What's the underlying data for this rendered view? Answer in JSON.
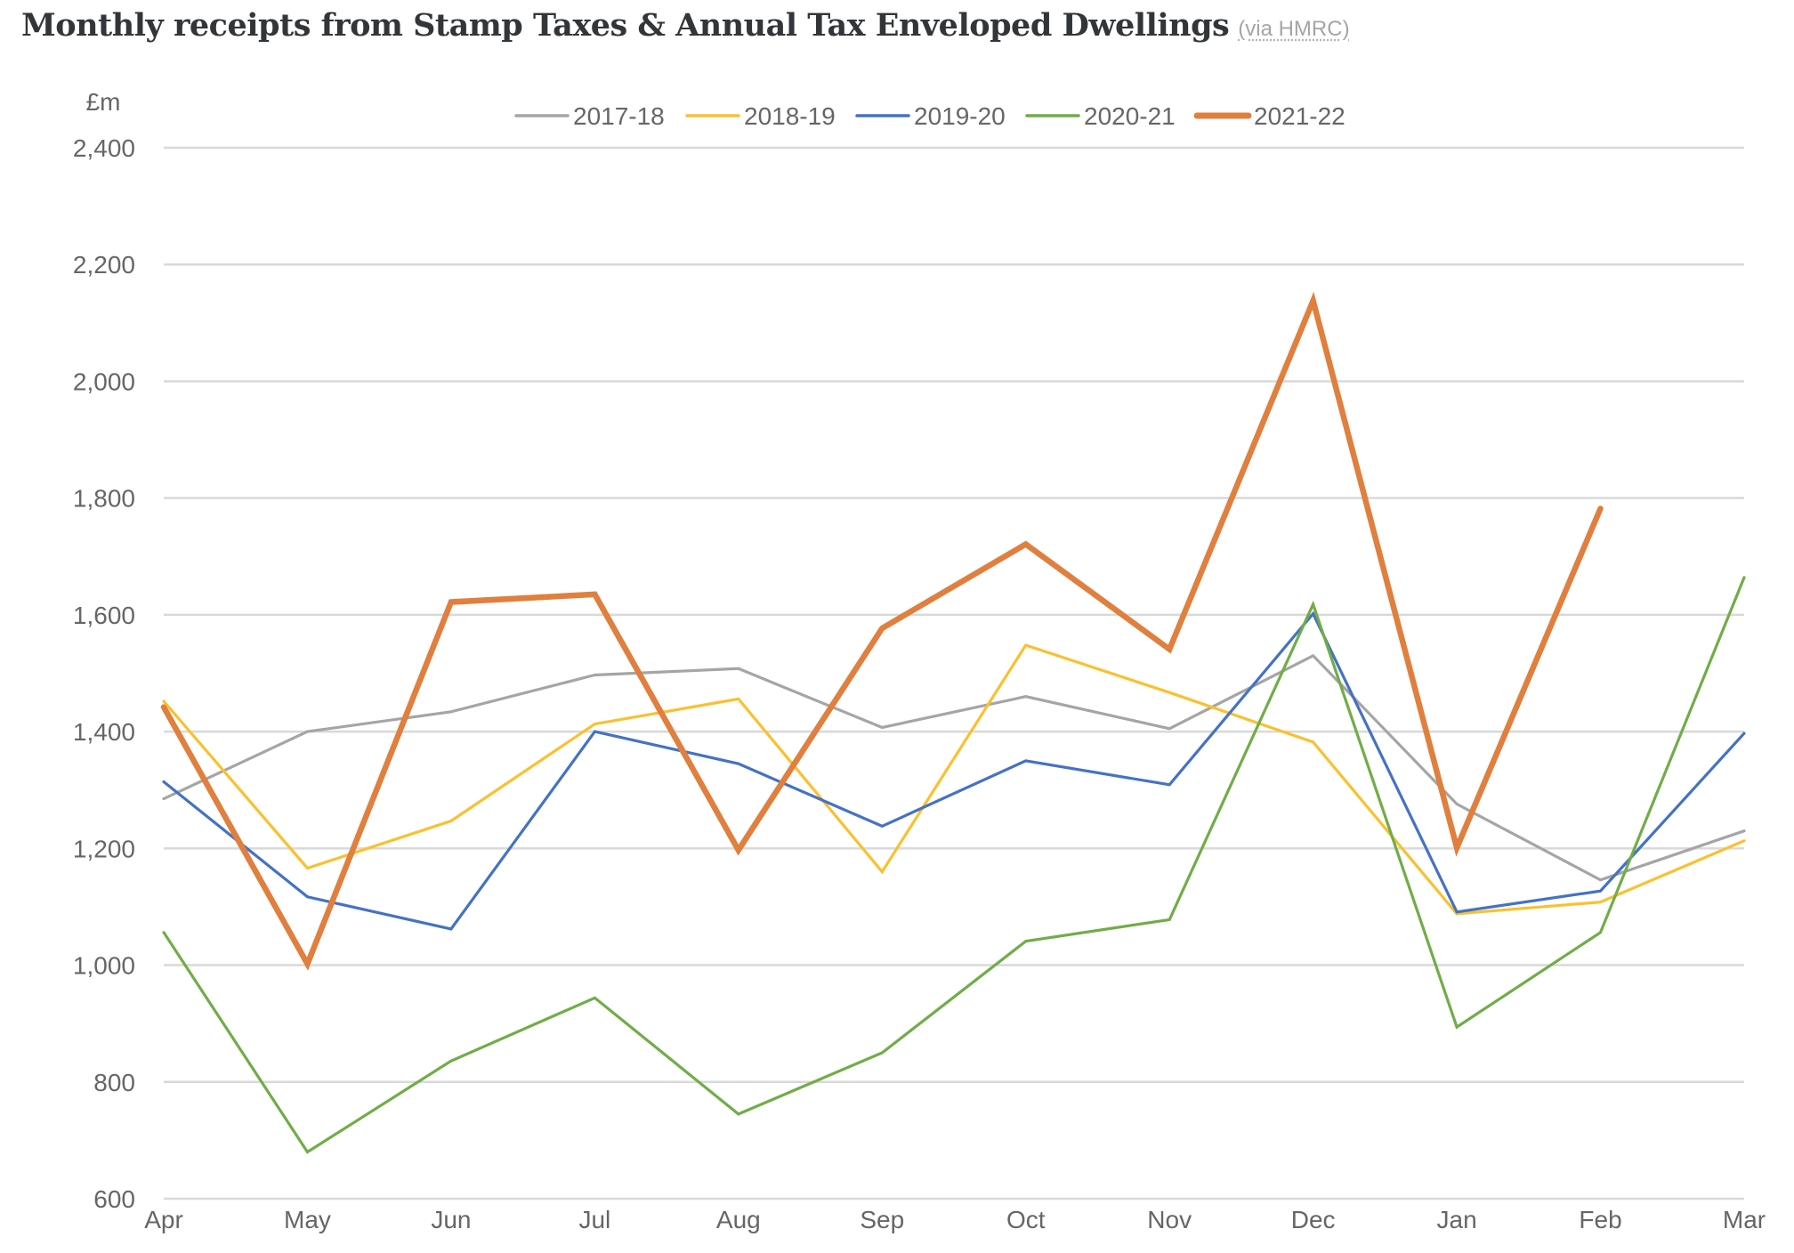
{
  "title": "Monthly receipts from Stamp Taxes & Annual Tax Enveloped Dwellings",
  "source_label": "(via HMRC)",
  "chart_data": {
    "type": "line",
    "title": "Monthly receipts from Stamp Taxes & Annual Tax Enveloped Dwellings",
    "subtitle": "(via HMRC)",
    "xlabel": "",
    "ylabel": "£m",
    "ylim": [
      600,
      2400
    ],
    "yticks": [
      600,
      800,
      1000,
      1200,
      1400,
      1600,
      1800,
      2000,
      2200,
      2400
    ],
    "ytick_labels": [
      "600",
      "800",
      "1,000",
      "1,200",
      "1,400",
      "1,600",
      "1,800",
      "2,000",
      "2,200",
      "2,400"
    ],
    "grid": true,
    "legend_position": "top-center",
    "categories": [
      "Apr",
      "May",
      "Jun",
      "Jul",
      "Aug",
      "Sep",
      "Oct",
      "Nov",
      "Dec",
      "Jan",
      "Feb",
      "Mar"
    ],
    "series": [
      {
        "name": "2017-18",
        "color": "#a5a5a5",
        "width": "thin",
        "values": [
          1285,
          1400,
          1434,
          1497,
          1508,
          1407,
          1460,
          1405,
          1530,
          1276,
          1146,
          1230
        ]
      },
      {
        "name": "2018-19",
        "color": "#fbc02d",
        "width": "thin",
        "values": [
          1452,
          1166,
          1247,
          1413,
          1456,
          1160,
          1548,
          1467,
          1382,
          1088,
          1108,
          1213
        ]
      },
      {
        "name": "2019-20",
        "color": "#4472c4",
        "width": "thin",
        "values": [
          1314,
          1117,
          1062,
          1400,
          1345,
          1238,
          1350,
          1309,
          1602,
          1091,
          1127,
          1397
        ]
      },
      {
        "name": "2020-21",
        "color": "#70ad47",
        "width": "thin",
        "values": [
          1056,
          680,
          836,
          944,
          745,
          850,
          1041,
          1078,
          1618,
          894,
          1056,
          1664
        ]
      },
      {
        "name": "2021-22",
        "color": "#e07f3e",
        "width": "thick",
        "values": [
          1442,
          1002,
          1622,
          1635,
          1197,
          1577,
          1721,
          1541,
          2138,
          1201,
          1782,
          null
        ]
      }
    ]
  }
}
